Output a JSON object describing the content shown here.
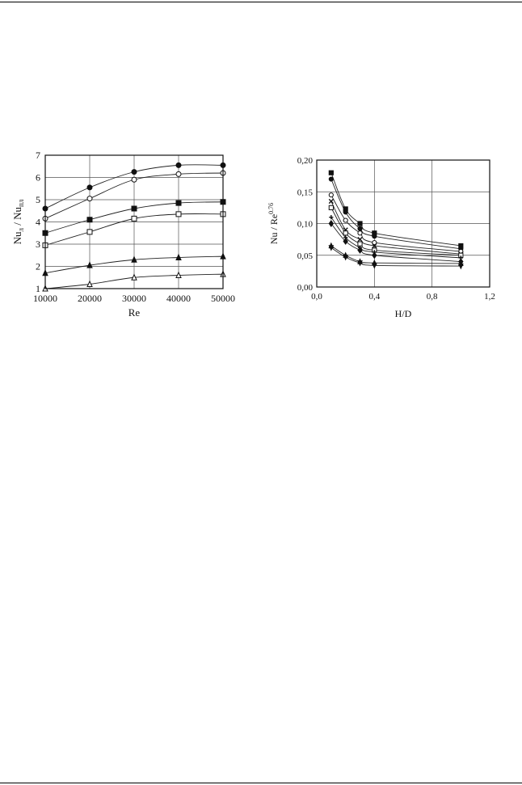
{
  "chart_data": [
    {
      "type": "line",
      "title": "",
      "xlabel": "Re",
      "ylabel_main": "Nu",
      "ylabel_sub1": "л",
      "ylabel_sep": " / Nu",
      "ylabel_sub2": "пл",
      "xlim": [
        10000,
        50000
      ],
      "ylim": [
        1,
        7
      ],
      "xticks": [
        10000,
        20000,
        30000,
        40000,
        50000
      ],
      "yticks": [
        1,
        2,
        3,
        4,
        5,
        6,
        7
      ],
      "xtick_labels": [
        "10000",
        "20000",
        "30000",
        "40000",
        "50000"
      ],
      "ytick_labels": [
        "1",
        "2",
        "3",
        "4",
        "5",
        "6",
        "7"
      ],
      "grid": true,
      "series": [
        {
          "marker": "filled-circle",
          "x": [
            10000,
            20000,
            30000,
            40000,
            50000
          ],
          "y": [
            4.6,
            5.55,
            6.25,
            6.55,
            6.55
          ]
        },
        {
          "marker": "open-circle",
          "x": [
            10000,
            20000,
            30000,
            40000,
            50000
          ],
          "y": [
            4.15,
            5.05,
            5.9,
            6.15,
            6.2
          ]
        },
        {
          "marker": "filled-square",
          "x": [
            10000,
            20000,
            30000,
            40000,
            50000
          ],
          "y": [
            3.5,
            4.1,
            4.6,
            4.85,
            4.9
          ]
        },
        {
          "marker": "open-square",
          "x": [
            10000,
            20000,
            30000,
            40000,
            50000
          ],
          "y": [
            2.95,
            3.55,
            4.15,
            4.35,
            4.35
          ]
        },
        {
          "marker": "filled-triangle",
          "x": [
            10000,
            20000,
            30000,
            40000,
            50000
          ],
          "y": [
            1.7,
            2.05,
            2.3,
            2.4,
            2.45
          ]
        },
        {
          "marker": "open-triangle",
          "x": [
            10000,
            20000,
            30000,
            40000,
            50000
          ],
          "y": [
            1.0,
            1.2,
            1.5,
            1.6,
            1.65
          ]
        }
      ]
    },
    {
      "type": "line",
      "title": "",
      "xlabel": "H/D",
      "ylabel_main": "Nu / Re",
      "ylabel_sup": "0.76",
      "xlim": [
        0.0,
        1.2
      ],
      "ylim": [
        0.0,
        0.2
      ],
      "xticks": [
        0.0,
        0.4,
        0.8,
        1.2
      ],
      "yticks": [
        0.0,
        0.05,
        0.1,
        0.15,
        0.2
      ],
      "xtick_labels": [
        "0,0",
        "0,4",
        "0,8",
        "1,2"
      ],
      "ytick_labels": [
        "0,00",
        "0,05",
        "0,10",
        "0,15",
        "0,20"
      ],
      "grid": true,
      "series": [
        {
          "marker": "filled-square",
          "x": [
            0.1,
            0.2,
            0.3,
            0.4,
            1.0
          ],
          "y": [
            0.18,
            0.123,
            0.1,
            0.085,
            0.065
          ]
        },
        {
          "marker": "filled-circle",
          "x": [
            0.1,
            0.2,
            0.3,
            0.4,
            1.0
          ],
          "y": [
            0.17,
            0.118,
            0.092,
            0.08,
            0.06
          ]
        },
        {
          "marker": "open-circle",
          "x": [
            0.1,
            0.2,
            0.3,
            0.4,
            1.0
          ],
          "y": [
            0.145,
            0.105,
            0.085,
            0.07,
            0.056
          ]
        },
        {
          "marker": "cross",
          "x": [
            0.1,
            0.2,
            0.3,
            0.4,
            1.0
          ],
          "y": [
            0.135,
            0.09,
            0.075,
            0.065,
            0.052
          ]
        },
        {
          "marker": "open-square",
          "x": [
            0.1,
            0.2,
            0.3,
            0.4,
            1.0
          ],
          "y": [
            0.125,
            0.085,
            0.068,
            0.058,
            0.05
          ]
        },
        {
          "marker": "plus",
          "x": [
            0.1,
            0.2,
            0.3,
            0.4,
            1.0
          ],
          "y": [
            0.11,
            0.078,
            0.062,
            0.055,
            0.046
          ]
        },
        {
          "marker": "filled-diamond",
          "x": [
            0.1,
            0.2,
            0.3,
            0.4,
            1.0
          ],
          "y": [
            0.1,
            0.072,
            0.058,
            0.05,
            0.04
          ]
        },
        {
          "marker": "filled-triangle",
          "x": [
            0.1,
            0.2,
            0.3,
            0.4,
            1.0
          ],
          "y": [
            0.065,
            0.05,
            0.04,
            0.038,
            0.037
          ]
        },
        {
          "marker": "filled-inverted-triangle",
          "x": [
            0.1,
            0.2,
            0.3,
            0.4,
            1.0
          ],
          "y": [
            0.062,
            0.047,
            0.038,
            0.034,
            0.033
          ]
        }
      ]
    }
  ]
}
